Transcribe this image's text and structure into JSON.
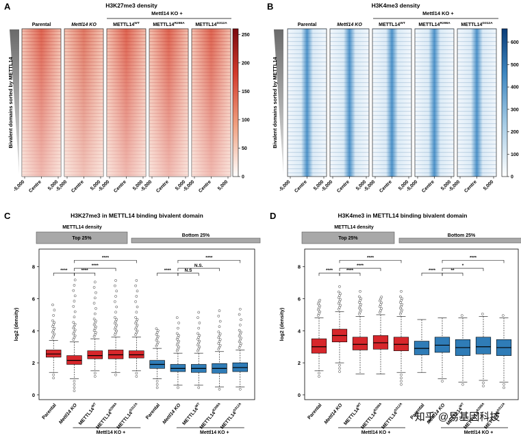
{
  "watermark": "知乎 @易基因科技",
  "colors": {
    "red": "#d7262b",
    "blue": "#2f7cb7",
    "gray": "#a8a8a8"
  },
  "chart_data": [
    {
      "id": "A",
      "type": "heatmap",
      "title": "H3K27me3 density",
      "colormap": "white-to-darkred",
      "ylabel": "Bivalent domains sorted by METTL14",
      "ko_header": "Mettl14 KO +",
      "columns": [
        "Parental",
        "Mettl14 KO",
        "METTL14WT",
        "METTL14R298A",
        "METTL14D312A"
      ],
      "xticks": [
        "-5,000",
        "Centre",
        "5,000"
      ],
      "colorbar_ticks": [
        0,
        50,
        100,
        150,
        200,
        250
      ],
      "colorbar_range": [
        0,
        260
      ]
    },
    {
      "id": "B",
      "type": "heatmap",
      "title": "H3K4me3 density",
      "colormap": "white-to-darkblue",
      "ylabel": "Bivalent domains sorted by METTL14",
      "ko_header": "Mettl14 KO +",
      "columns": [
        "Parental",
        "Mettl14 KO",
        "METTL14WT",
        "METTL14R298A",
        "METTL14D312A"
      ],
      "xticks": [
        "-5,000",
        "Centre",
        "5,000"
      ],
      "colorbar_ticks": [
        0,
        100,
        200,
        300,
        400,
        500,
        600
      ],
      "colorbar_range": [
        0,
        660
      ]
    },
    {
      "id": "C",
      "type": "box",
      "title": "H3K27me3 in METTL14 binding bivalent domain",
      "density_label": "METTL14 density",
      "groups": [
        "Top 25%",
        "Bottom 25%"
      ],
      "ylabel": "log2 (density)",
      "ylim": [
        -0.3,
        9.1
      ],
      "yticks": [
        0,
        2,
        4,
        6,
        8
      ],
      "categories": [
        "Parental",
        "Mettl14 KO",
        "METTL14WT",
        "METTL14R298A",
        "METTL14D312A",
        "Parental",
        "Mettl14 KO",
        "METTL14WT",
        "METTL14R298A",
        "METTL14D312A"
      ],
      "ko_footer": [
        "Mettl14 KO +",
        "Mettl14 KO +"
      ],
      "boxes": [
        {
          "q1": 2.35,
          "med": 2.55,
          "q3": 2.8,
          "wlo": 1.4,
          "whi": 3.4,
          "omax": 5.9,
          "omin": 0.9,
          "color": "red"
        },
        {
          "q1": 1.9,
          "med": 2.15,
          "q3": 2.45,
          "wlo": 1.0,
          "whi": 3.3,
          "omax": 7.5,
          "omin": 0.2,
          "color": "red"
        },
        {
          "q1": 2.25,
          "med": 2.45,
          "q3": 2.75,
          "wlo": 1.5,
          "whi": 3.5,
          "omax": 7.2,
          "omin": 1.0,
          "color": "red"
        },
        {
          "q1": 2.25,
          "med": 2.5,
          "q3": 2.8,
          "wlo": 1.4,
          "whi": 3.6,
          "omax": 7.4,
          "omin": 1.2,
          "color": "red"
        },
        {
          "q1": 2.3,
          "med": 2.5,
          "q3": 2.75,
          "wlo": 1.5,
          "whi": 3.6,
          "omax": 7.2,
          "omin": 1.1,
          "color": "red"
        },
        {
          "q1": 1.65,
          "med": 1.9,
          "q3": 2.15,
          "wlo": 1.0,
          "whi": 2.9,
          "omax": 4.2,
          "omin": 0.3,
          "color": "blue"
        },
        {
          "q1": 1.45,
          "med": 1.65,
          "q3": 1.9,
          "wlo": 0.6,
          "whi": 2.6,
          "omax": 5.0,
          "omin": 0.3,
          "color": "blue"
        },
        {
          "q1": 1.4,
          "med": 1.65,
          "q3": 1.9,
          "wlo": 0.6,
          "whi": 2.6,
          "omax": 5.2,
          "omin": 0.3,
          "color": "blue"
        },
        {
          "q1": 1.35,
          "med": 1.65,
          "q3": 1.95,
          "wlo": 0.5,
          "whi": 2.7,
          "omax": 5.4,
          "omin": 0.2,
          "color": "blue"
        },
        {
          "q1": 1.45,
          "med": 1.7,
          "q3": 2.0,
          "wlo": 0.5,
          "whi": 2.8,
          "omax": 5.4,
          "omin": 0.3,
          "color": "blue"
        }
      ],
      "brackets": [
        {
          "from": 1,
          "to": 2,
          "y": 7.6,
          "label": "****"
        },
        {
          "from": 2,
          "to": 5,
          "y": 8.4,
          "label": "****"
        },
        {
          "from": 2,
          "to": 4,
          "y": 7.9,
          "label": "****"
        },
        {
          "from": 2,
          "to": 3,
          "y": 7.6,
          "label": "****"
        },
        {
          "from": 6,
          "to": 7,
          "y": 7.6,
          "label": "****"
        },
        {
          "from": 7,
          "to": 10,
          "y": 8.4,
          "label": "****"
        },
        {
          "from": 7,
          "to": 9,
          "y": 7.9,
          "label": "N.S."
        },
        {
          "from": 7,
          "to": 8,
          "y": 7.6,
          "label": "N.S"
        }
      ]
    },
    {
      "id": "D",
      "type": "box",
      "title": "H3K4me3 in METTL14 binding bivalent domain",
      "density_label": "METTL14 density",
      "groups": [
        "Top 25%",
        "Bottom 25%"
      ],
      "ylabel": "log2 (density)",
      "ylim": [
        -0.3,
        9.1
      ],
      "yticks": [
        0,
        2,
        4,
        6,
        8
      ],
      "categories": [
        "Parental",
        "Mettl14 KO",
        "METTL14WT",
        "METTL14R298A",
        "METTL14D312A",
        "Parental",
        "Mettl14 KO",
        "METTL14WT",
        "METTL14R298A",
        "METTL14D312A"
      ],
      "ko_footer": [
        "Mettl14 KO +",
        "Mettl14 KO +"
      ],
      "boxes": [
        {
          "q1": 2.6,
          "med": 3.0,
          "q3": 3.5,
          "wlo": 1.5,
          "whi": 4.8,
          "omax": 6.0,
          "omin": 1.0,
          "color": "red"
        },
        {
          "q1": 3.3,
          "med": 3.7,
          "q3": 4.1,
          "wlo": 2.0,
          "whi": 5.2,
          "omax": 6.9,
          "omin": 1.3,
          "color": "red"
        },
        {
          "q1": 2.8,
          "med": 3.15,
          "q3": 3.6,
          "wlo": 1.3,
          "whi": 4.9,
          "omax": 6.6,
          "omin": 1.2,
          "color": "red"
        },
        {
          "q1": 2.85,
          "med": 3.25,
          "q3": 3.7,
          "wlo": 1.3,
          "whi": 5.0,
          "omax": 6.2,
          "omin": 1.2,
          "color": "red"
        },
        {
          "q1": 2.75,
          "med": 3.15,
          "q3": 3.6,
          "wlo": 1.4,
          "whi": 4.9,
          "omax": 6.5,
          "omin": 0.5,
          "color": "red"
        },
        {
          "q1": 2.5,
          "med": 2.9,
          "q3": 3.35,
          "wlo": 1.4,
          "whi": 4.7,
          "omax": 4.8,
          "omin": 1.3,
          "color": "blue"
        },
        {
          "q1": 2.65,
          "med": 3.1,
          "q3": 3.6,
          "wlo": 1.0,
          "whi": 4.8,
          "omax": 4.9,
          "omin": 0.7,
          "color": "blue"
        },
        {
          "q1": 2.45,
          "med": 2.95,
          "q3": 3.45,
          "wlo": 0.8,
          "whi": 4.8,
          "omax": 5.0,
          "omin": 0.6,
          "color": "blue"
        },
        {
          "q1": 2.55,
          "med": 3.0,
          "q3": 3.6,
          "wlo": 0.9,
          "whi": 4.9,
          "omax": 5.1,
          "omin": 0.5,
          "color": "blue"
        },
        {
          "q1": 2.45,
          "med": 2.95,
          "q3": 3.45,
          "wlo": 0.8,
          "whi": 4.8,
          "omax": 5.0,
          "omin": 0.3,
          "color": "blue"
        }
      ],
      "brackets": [
        {
          "from": 1,
          "to": 2,
          "y": 7.6,
          "label": "****"
        },
        {
          "from": 2,
          "to": 5,
          "y": 8.4,
          "label": "****"
        },
        {
          "from": 2,
          "to": 4,
          "y": 7.9,
          "label": "****"
        },
        {
          "from": 2,
          "to": 3,
          "y": 7.6,
          "label": "****"
        },
        {
          "from": 6,
          "to": 7,
          "y": 7.6,
          "label": "****"
        },
        {
          "from": 7,
          "to": 10,
          "y": 8.4,
          "label": "****"
        },
        {
          "from": 7,
          "to": 9,
          "y": 7.9,
          "label": "*"
        },
        {
          "from": 7,
          "to": 8,
          "y": 7.6,
          "label": "**"
        }
      ]
    }
  ]
}
